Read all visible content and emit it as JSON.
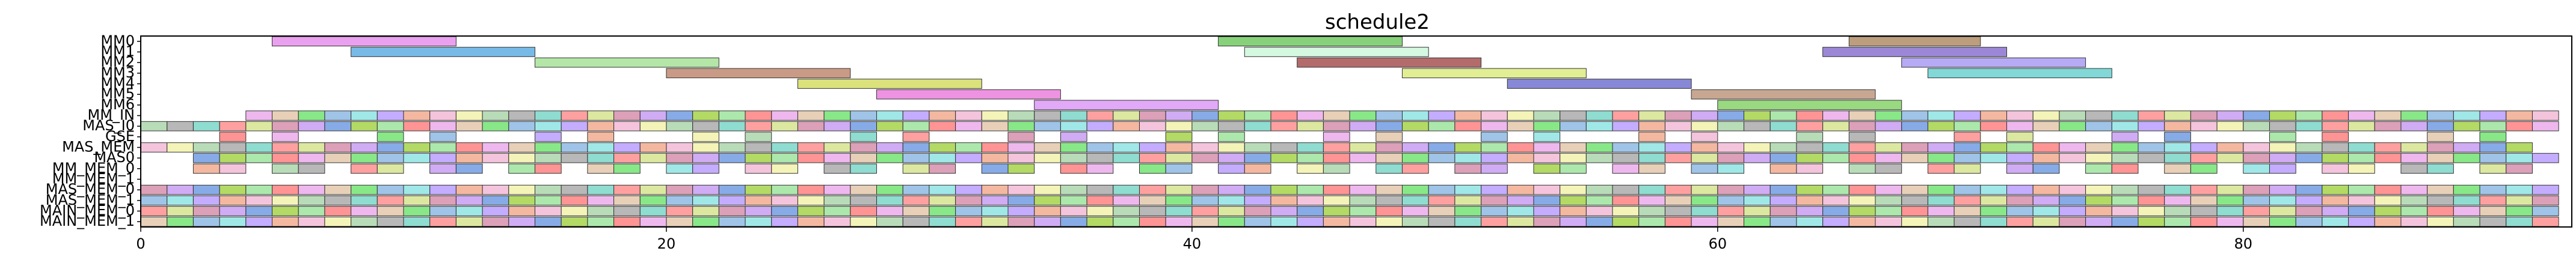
{
  "chart_data": {
    "type": "gantt",
    "title": "schedule2",
    "xlabel": "",
    "ylabel": "",
    "xlim": [
      0,
      92.5
    ],
    "xticks": [
      0,
      20,
      40,
      60,
      80
    ],
    "rows": [
      "MM0",
      "MM1",
      "MM2",
      "MM3",
      "MM4",
      "MM5",
      "MM6",
      "MM_IN",
      "MAS_I0",
      "GSE",
      "MAS_MEM",
      "MAS0",
      "MM_MEM_0",
      "MM_MEM_1",
      "MAS_MEM_0",
      "MAS_MEM_1",
      "MAIN_MEM_0",
      "MAIN_MEM_1"
    ],
    "ytick_labels": [
      "MM0",
      "MM1",
      "MM2",
      "MM3",
      "MM4",
      "MM5",
      "MM6",
      "MM_IN",
      "MAS_I0",
      "GSE",
      "MAS_MEM",
      "MAS0",
      "MM_MEM_0",
      "MM_MEM_1",
      "MAS_MEM_0",
      "MAS_MEM_1",
      "MAIN_MEM_0",
      "MAIN_MEM_1"
    ],
    "tasks": [
      {
        "row": 0,
        "start": 5,
        "end": 12,
        "color": "#e180e8"
      },
      {
        "row": 0,
        "start": 41,
        "end": 48,
        "color": "#5fc14f"
      },
      {
        "row": 0,
        "start": 65,
        "end": 70,
        "color": "#a57c52"
      },
      {
        "row": 1,
        "start": 8,
        "end": 15,
        "color": "#4aa3df"
      },
      {
        "row": 1,
        "start": 42,
        "end": 49,
        "color": "#c5f5d5"
      },
      {
        "row": 1,
        "start": 64,
        "end": 71,
        "color": "#7b5fc9"
      },
      {
        "row": 2,
        "start": 15,
        "end": 22,
        "color": "#99dd8a"
      },
      {
        "row": 2,
        "start": 44,
        "end": 51,
        "color": "#9b3a3a"
      },
      {
        "row": 2,
        "start": 67,
        "end": 74,
        "color": "#9d8ef0"
      },
      {
        "row": 3,
        "start": 20,
        "end": 27,
        "color": "#b77a5e"
      },
      {
        "row": 3,
        "start": 48,
        "end": 55,
        "color": "#d7e870"
      },
      {
        "row": 3,
        "start": 68,
        "end": 75,
        "color": "#58c9c9"
      },
      {
        "row": 4,
        "start": 25,
        "end": 32,
        "color": "#cfd850"
      },
      {
        "row": 4,
        "start": 52,
        "end": 59,
        "color": "#5f60c8"
      },
      {
        "row": 5,
        "start": 28,
        "end": 35,
        "color": "#e86fd8"
      },
      {
        "row": 5,
        "start": 59,
        "end": 66,
        "color": "#b58a6e"
      },
      {
        "row": 6,
        "start": 34,
        "end": 41,
        "color": "#d78cf5"
      },
      {
        "row": 6,
        "start": 60,
        "end": 67,
        "color": "#77cc55"
      }
    ],
    "dense_rows": [
      {
        "row": 7,
        "start": 4,
        "end": 92,
        "step": 1
      },
      {
        "row": 8,
        "start": 0,
        "end": 92,
        "step": 1
      },
      {
        "row": 9,
        "start": 1,
        "end": 92,
        "step": 2
      },
      {
        "row": 10,
        "start": 0,
        "end": 91,
        "step": 1
      },
      {
        "row": 11,
        "start": 2,
        "end": 92,
        "step": 1
      },
      {
        "row": 12,
        "start": 1,
        "end": 92,
        "step": 1
      },
      {
        "row": 14,
        "start": 0,
        "end": 92,
        "step": 1
      },
      {
        "row": 15,
        "start": 0,
        "end": 92,
        "step": 1
      },
      {
        "row": 16,
        "start": 0,
        "end": 92,
        "step": 1
      },
      {
        "row": 17,
        "start": 0,
        "end": 92,
        "step": 1
      }
    ],
    "palette": [
      "#e8a0e8",
      "#7fb0e0",
      "#f0a080",
      "#a0d0a0",
      "#ff8080",
      "#c090f0",
      "#90e090",
      "#e0c0a0",
      "#80e0e0",
      "#f0b0d0",
      "#a0a0a0",
      "#d0e080",
      "#5f8fdf",
      "#ff7070",
      "#60e060",
      "#b090ff",
      "#f0f0a0",
      "#6ad0c0",
      "#d080a0",
      "#9acd32"
    ],
    "grid": false,
    "legend": "none"
  }
}
